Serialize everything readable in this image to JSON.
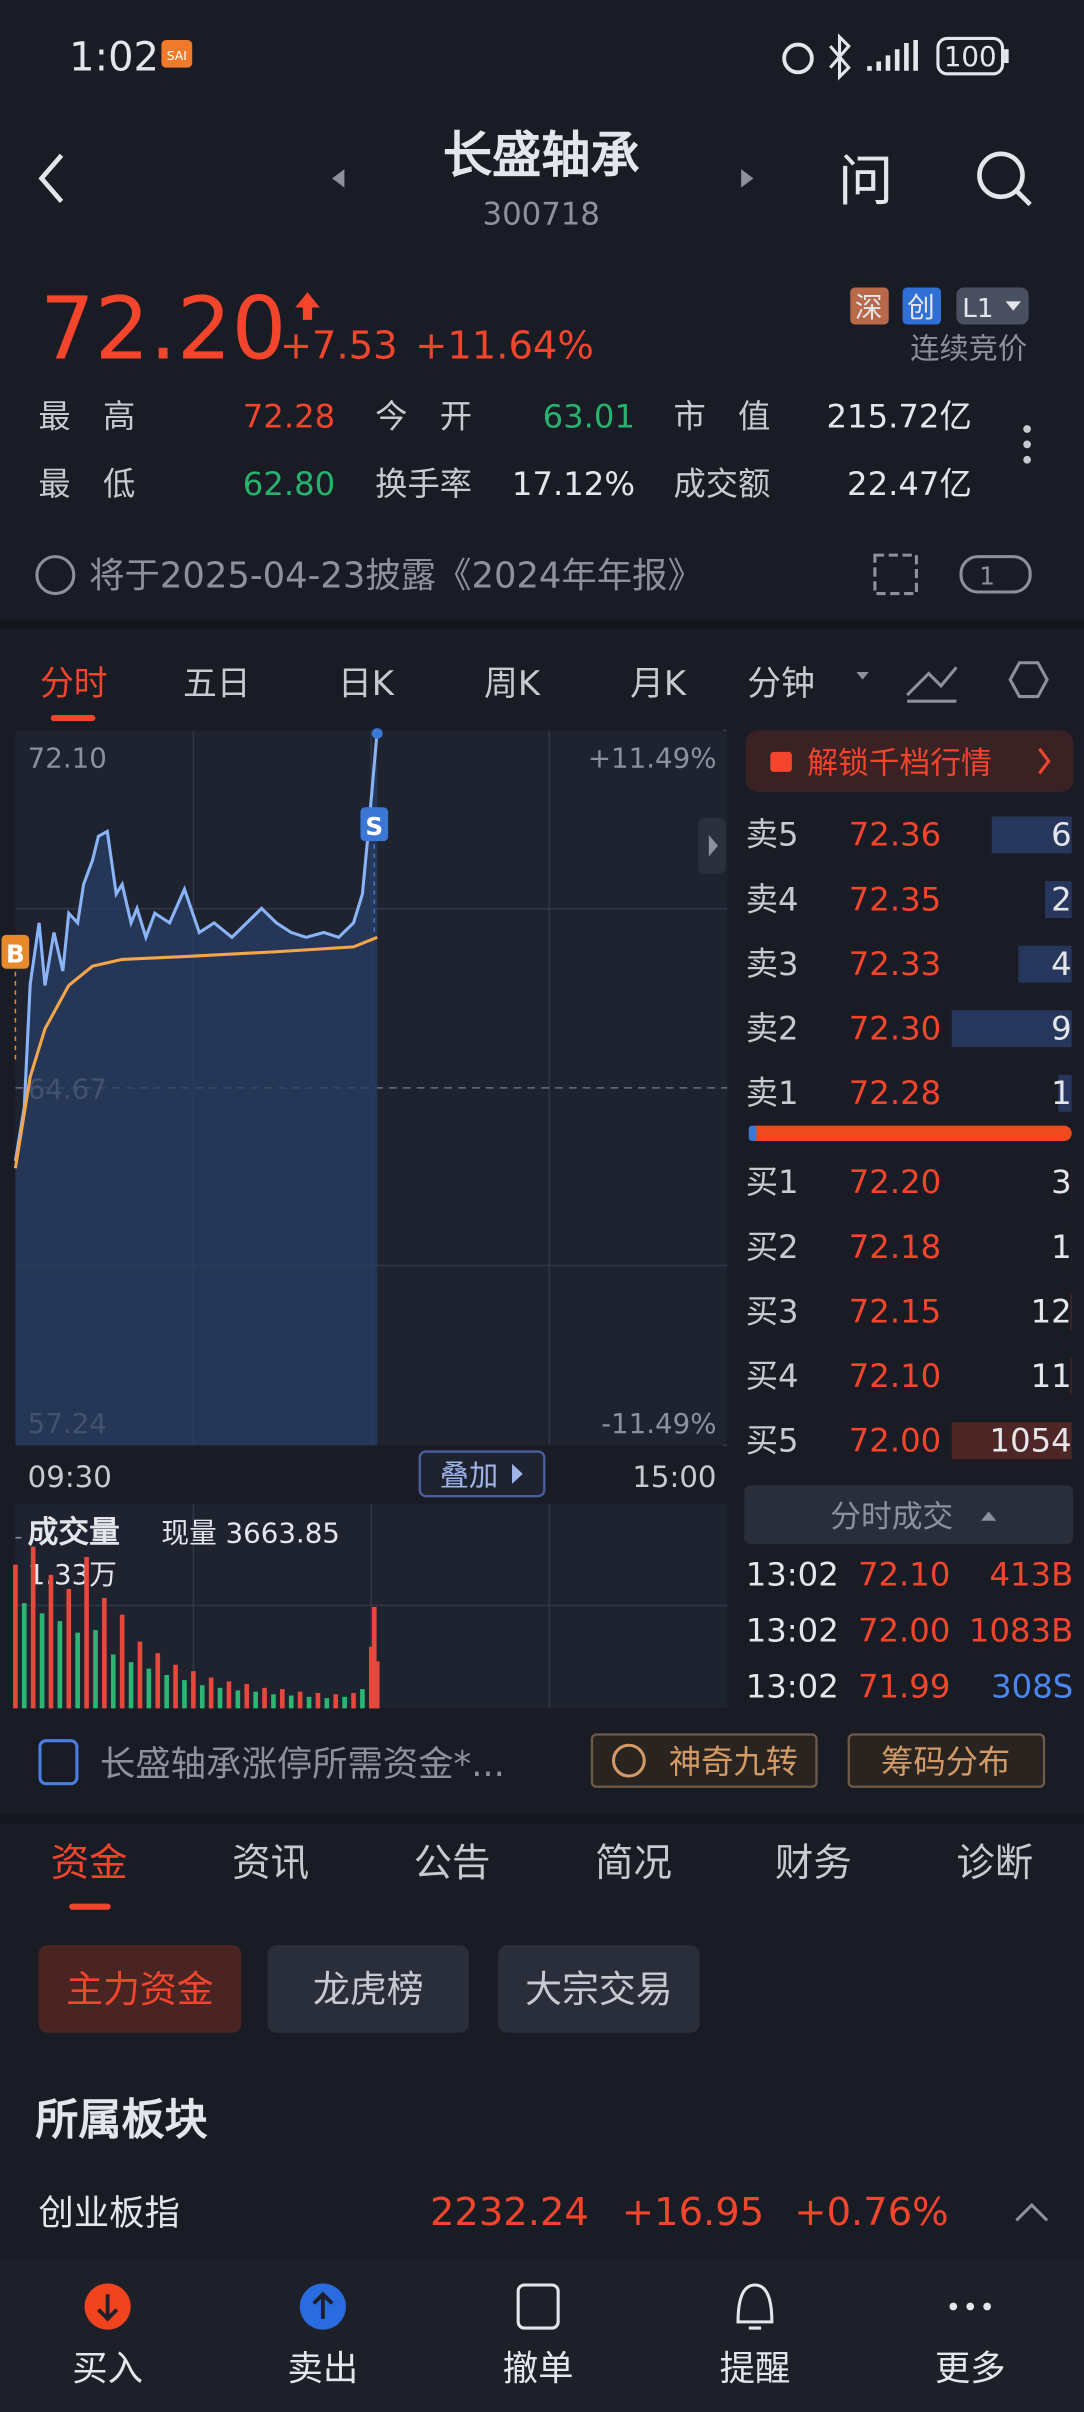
{
  "status_bar": {
    "time": "1:02",
    "app_badge": "SAI",
    "battery": "100"
  },
  "header": {
    "name": "长盛轴承",
    "code": "300718",
    "ask": "问"
  },
  "quote": {
    "price": "72.20",
    "change": "+7.53",
    "change_pct": "+11.64%",
    "tags": [
      "深",
      "创",
      "L1"
    ],
    "trading_status": "连续竞价",
    "stats": [
      [
        {
          "label": "最　高",
          "value": "72.28"
        },
        {
          "label": "今　开",
          "value": "63.01"
        },
        {
          "label": "市　值",
          "value": "215.72亿"
        }
      ],
      [
        {
          "label": "最　低",
          "value": "62.80"
        },
        {
          "label": "换手率",
          "value": "17.12%"
        },
        {
          "label": "成交额",
          "value": "22.47亿"
        }
      ]
    ]
  },
  "notice": {
    "text": "将于2025-04-23披露《2024年年报》",
    "badge": "1"
  },
  "chart_tabs": [
    "分时",
    "五日",
    "日K",
    "周K",
    "月K",
    "分钟"
  ],
  "chart_data": {
    "type": "line",
    "xticks": [
      "09:30",
      "15:00"
    ],
    "ylim": [
      57.24,
      72.1
    ],
    "yticks": [
      {
        "value": 72.1,
        "label": "72.10"
      },
      64.67,
      57.24
    ],
    "y2lim": [
      -11.49,
      11.49
    ],
    "y2ticks": [
      {
        "value": 11.49,
        "label": "+11.49%"
      },
      {
        "value": -11.49,
        "label": "-11.49%"
      }
    ],
    "series": [
      {
        "color": "#8ab4f8",
        "x": [
          "09:30",
          "09:33",
          "09:35",
          "09:38",
          "09:40",
          "09:43",
          "09:46",
          "09:48",
          "09:51",
          "09:53",
          "09:56",
          "09:58",
          "10:01",
          "10:04",
          "10:06",
          "10:09",
          "10:11",
          "10:14",
          "10:17",
          "10:22",
          "10:27",
          "10:32",
          "10:37",
          "10:43",
          "10:48",
          "10:53",
          "10:58",
          "11:03",
          "11:08",
          "11:14",
          "11:19",
          "11:24",
          "11:27",
          "11:29",
          "13:02"
        ],
        "values": [
          63.15,
          64.27,
          66.83,
          68.1,
          66.8,
          67.9,
          67.1,
          68.3,
          68.1,
          68.9,
          69.4,
          69.9,
          70.0,
          68.7,
          68.9,
          68.1,
          68.4,
          67.8,
          68.3,
          68.1,
          68.8,
          67.9,
          68.1,
          67.8,
          68.1,
          68.4,
          68.1,
          67.9,
          67.8,
          67.9,
          67.8,
          68.1,
          68.7,
          70.0,
          72.1
        ]
      },
      {
        "color": "#f5a54a",
        "x": [
          "09:30",
          "09:35",
          "09:40",
          "09:48",
          "09:56",
          "10:06",
          "10:27",
          "10:58",
          "11:24",
          "13:02"
        ],
        "values": [
          63.0,
          64.9,
          65.9,
          66.8,
          67.2,
          67.34,
          67.4,
          67.5,
          67.6,
          67.8
        ]
      }
    ],
    "markers": [
      {
        "label": "B",
        "x": "09:30",
        "color": "#e8892b"
      },
      {
        "label": "S",
        "x": "13:01",
        "color": "#3b78d6"
      }
    ],
    "overlay_button": "叠加"
  },
  "volume_chart": {
    "type": "bar",
    "title": "成交量",
    "current": "现量 3663.85",
    "ylim": [
      0,
      13300
    ],
    "yticks": [
      {
        "value": 13300,
        "label": "1.33万"
      }
    ],
    "x": [
      "09:30",
      "09:33",
      "09:36",
      "09:39",
      "09:42",
      "09:45",
      "09:48",
      "09:51",
      "09:54",
      "09:57",
      "10:00",
      "10:03",
      "10:06",
      "10:09",
      "10:12",
      "10:15",
      "10:18",
      "10:21",
      "10:24",
      "10:27",
      "10:30",
      "10:33",
      "10:36",
      "10:39",
      "10:42",
      "10:45",
      "10:48",
      "10:51",
      "10:54",
      "10:57",
      "11:00",
      "11:03",
      "11:06",
      "11:09",
      "11:12",
      "11:15",
      "11:18",
      "11:21",
      "11:24",
      "11:27",
      "13:00",
      "13:01",
      "13:02"
    ],
    "values": [
      11200,
      8200,
      12600,
      7400,
      10400,
      6800,
      9300,
      5900,
      11800,
      6100,
      8600,
      4200,
      7300,
      3600,
      5200,
      3100,
      4300,
      2600,
      3400,
      2200,
      2900,
      1800,
      2400,
      1600,
      2100,
      1400,
      1900,
      1300,
      1600,
      1100,
      1500,
      1000,
      1300,
      900,
      1200,
      800,
      1100,
      900,
      1200,
      1500,
      4800,
      7900,
      3663.85
    ],
    "colors": [
      "#e8483b",
      "#2bb673",
      "#e8483b",
      "#2bb673",
      "#e8483b",
      "#2bb673",
      "#e8483b",
      "#2bb673",
      "#e8483b",
      "#2bb673",
      "#e8483b",
      "#2bb673",
      "#e8483b",
      "#2bb673",
      "#e8483b",
      "#2bb673",
      "#e8483b",
      "#2bb673",
      "#e8483b",
      "#2bb673",
      "#e8483b",
      "#2bb673",
      "#e8483b",
      "#2bb673",
      "#e8483b",
      "#2bb673",
      "#e8483b",
      "#2bb673",
      "#e8483b",
      "#2bb673",
      "#e8483b",
      "#2bb673",
      "#e8483b",
      "#2bb673",
      "#e8483b",
      "#2bb673",
      "#e8483b",
      "#2bb673",
      "#e8483b",
      "#2bb673",
      "#e8483b",
      "#e8483b",
      "#e8483b"
    ]
  },
  "order_book": {
    "unlock": "解锁千档行情",
    "asks": [
      {
        "label": "卖5",
        "price": "72.36",
        "volume": 6
      },
      {
        "label": "卖4",
        "price": "72.35",
        "volume": 2
      },
      {
        "label": "卖3",
        "price": "72.33",
        "volume": 4
      },
      {
        "label": "卖2",
        "price": "72.30",
        "volume": 9
      },
      {
        "label": "卖1",
        "price": "72.28",
        "volume": 1
      }
    ],
    "bids": [
      {
        "label": "买1",
        "price": "72.20",
        "volume": 3
      },
      {
        "label": "买2",
        "price": "72.18",
        "volume": 1
      },
      {
        "label": "买3",
        "price": "72.15",
        "volume": 12
      },
      {
        "label": "买4",
        "price": "72.10",
        "volume": 11
      },
      {
        "label": "买5",
        "price": "72.00",
        "volume": 1054
      }
    ]
  },
  "trades": {
    "title": "分时成交",
    "rows": [
      {
        "time": "13:02",
        "price": "72.10",
        "volume": "413B"
      },
      {
        "time": "13:02",
        "price": "72.00",
        "volume": "1083B"
      },
      {
        "time": "13:02",
        "price": "71.99",
        "volume": "308S"
      }
    ]
  },
  "news": {
    "text": "长盛轴承涨停所需资金*...",
    "buttons": [
      "神奇九转",
      "筹码分布"
    ]
  },
  "info_tabs": [
    "资金",
    "资讯",
    "公告",
    "简况",
    "财务",
    "诊断"
  ],
  "fund_buttons": [
    "主力资金",
    "龙虎榜",
    "大宗交易"
  ],
  "sector": {
    "title": "所属板块",
    "rows": [
      {
        "name": "创业板指",
        "value": "2232.24",
        "change": "+16.95",
        "change_pct": "+0.76%"
      }
    ]
  },
  "bottom_nav": [
    "买入",
    "卖出",
    "撤单",
    "提醒",
    "更多"
  ]
}
